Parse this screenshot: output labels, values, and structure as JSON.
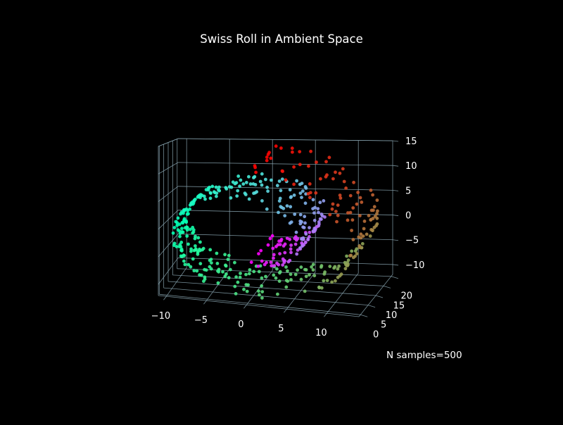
{
  "figure": {
    "background": "#000000",
    "gridline_color": "#8aa6b2",
    "text_color": "#ffffff"
  },
  "chart_data": {
    "type": "scatter",
    "projection": "3d",
    "title": "Swiss Roll in Ambient Space",
    "annotation": "N samples=500",
    "colormap": "rainbow",
    "n_samples": 500,
    "xlim": [
      -11,
      14
    ],
    "ylim": [
      -1,
      21
    ],
    "zlim": [
      -12,
      15
    ],
    "xticks": [
      -10,
      -5,
      0,
      5,
      10
    ],
    "yticks": [
      0,
      5,
      10,
      15,
      20
    ],
    "zticks": [
      -10,
      -5,
      0,
      5,
      10,
      15
    ],
    "xtick_labels": [
      "−10",
      "−5",
      "0",
      "5",
      "10"
    ],
    "ytick_labels": [
      "0",
      "5",
      "10",
      "15",
      "20"
    ],
    "ztick_labels": [
      "−10",
      "−5",
      "0",
      "5",
      "10",
      "15"
    ],
    "grid": true,
    "legend": "none",
    "points": {
      "generator": "swiss_roll",
      "t_range": [
        4.712,
        14.137
      ],
      "x": "t*cos(t)",
      "y": "uniform(0, 21)",
      "z": "t*sin(t)",
      "color_by": "t"
    }
  }
}
